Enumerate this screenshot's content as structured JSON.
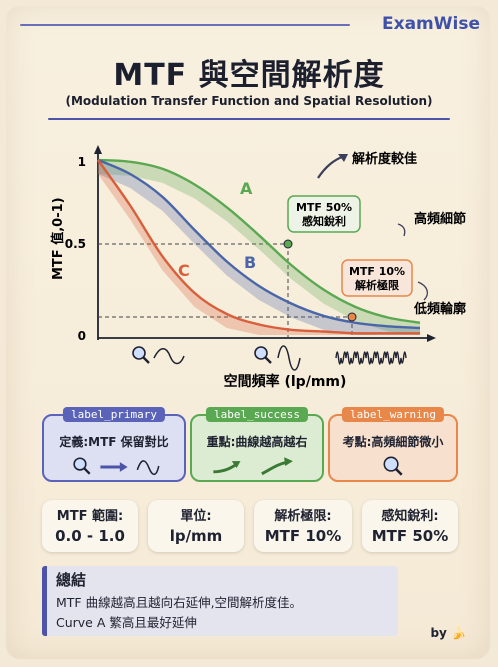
{
  "brand": "ExamWise",
  "title": "MTF 與空間解析度",
  "subtitle": "(Modulation Transfer Function and Spatial Resolution)",
  "chart_data": {
    "type": "line",
    "ylabel": "MTF 值,0-1)",
    "xlabel": "空間頻率 (lp/mm)",
    "y_ticks": [
      "1",
      "0.5",
      "0"
    ],
    "ylim": [
      0,
      1
    ],
    "series": [
      {
        "name": "A",
        "color": "#5aa852",
        "x": [
          0,
          0.1,
          0.2,
          0.3,
          0.4,
          0.5,
          0.6,
          0.7,
          0.8,
          0.9,
          1.0
        ],
        "values": [
          1.0,
          0.99,
          0.95,
          0.86,
          0.73,
          0.57,
          0.4,
          0.26,
          0.16,
          0.1,
          0.07
        ]
      },
      {
        "name": "B",
        "color": "#4a66a8",
        "x": [
          0,
          0.1,
          0.2,
          0.3,
          0.4,
          0.5,
          0.6,
          0.7,
          0.8,
          0.9,
          1.0
        ],
        "values": [
          1.0,
          0.92,
          0.79,
          0.6,
          0.42,
          0.28,
          0.18,
          0.11,
          0.07,
          0.05,
          0.04
        ]
      },
      {
        "name": "C",
        "color": "#d95f3c",
        "x": [
          0,
          0.1,
          0.2,
          0.3,
          0.4,
          0.5,
          0.6,
          0.7,
          0.8,
          0.9,
          1.0
        ],
        "values": [
          1.0,
          0.74,
          0.45,
          0.24,
          0.12,
          0.06,
          0.03,
          0.02,
          0.01,
          0.01,
          0.01
        ]
      }
    ],
    "annotations": {
      "mtf50": "MTF 50%\n感知銳利",
      "mtf10": "MTF 10%\n解析極限",
      "better": "解析度較佳",
      "high_detail": "高頻細節",
      "low_contour": "低頻輪廓"
    },
    "legend": "none",
    "grid": false
  },
  "tags": [
    {
      "label": "label_primary",
      "text": "定義:MTF 保留對比",
      "color": "#5a63b8",
      "bg": "#dde0f3"
    },
    {
      "label": "label_success",
      "text": "重點:曲線越高越右",
      "color": "#5aa852",
      "bg": "#dcecd2"
    },
    {
      "label": "label_warning",
      "text": "考點:高頻細節微小",
      "color": "#e7874a",
      "bg": "#f8e0cf"
    }
  ],
  "stats": [
    {
      "key": "MTF 範圍:",
      "value": "0.0 - 1.0"
    },
    {
      "key": "單位:",
      "value": "lp/mm"
    },
    {
      "key": "解析極限:",
      "value": "MTF 10%"
    },
    {
      "key": "感知銳利:",
      "value": "MTF 50%"
    }
  ],
  "summary": {
    "title": "總結",
    "line1": "MTF 曲線越高且越向右延伸,空間解析度佳。",
    "line2": "Curve A 繁高且最好延伸"
  },
  "byline": "by 🍌"
}
